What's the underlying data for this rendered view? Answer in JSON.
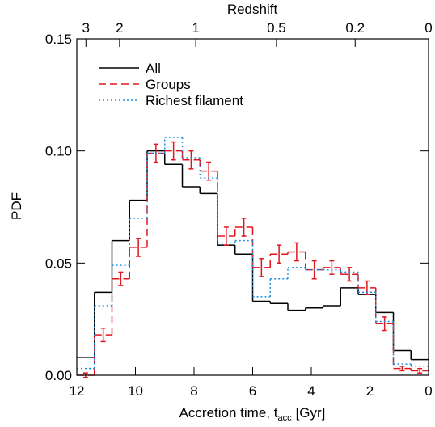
{
  "chart_data": {
    "type": "histogram",
    "xlabel_parts": [
      "Accretion time, t",
      "acc",
      "[Gyr]"
    ],
    "ylabel": "PDF",
    "top_axis": {
      "label": "Redshift",
      "ticks": [
        3,
        2,
        1,
        0.5,
        0.2,
        0
      ]
    },
    "bins": [
      12,
      11.4,
      10.8,
      10.2,
      9.6,
      9.0,
      8.4,
      7.8,
      7.2,
      6.6,
      6.0,
      5.4,
      4.8,
      4.2,
      3.6,
      3.0,
      2.4,
      1.8,
      1.2,
      0.6,
      0
    ],
    "xlim": [
      12,
      0
    ],
    "xticks": [
      12,
      10,
      8,
      6,
      4,
      2,
      0
    ],
    "ylim": [
      0,
      0.15
    ],
    "yticks": [
      {
        "value": 0,
        "label": "0.00"
      },
      {
        "value": 0.05,
        "label": "0.05"
      },
      {
        "value": 0.1,
        "label": "0.10"
      },
      {
        "value": 0.15,
        "label": "0.15"
      }
    ],
    "legend": "upper left",
    "series": [
      {
        "name": "All",
        "color": "#000000",
        "dash": "solid",
        "values": [
          0.008,
          0.037,
          0.06,
          0.078,
          0.1,
          0.094,
          0.084,
          0.081,
          0.058,
          0.054,
          0.033,
          0.032,
          0.029,
          0.03,
          0.031,
          0.039,
          0.036,
          0.028,
          0.011,
          0.007
        ]
      },
      {
        "name": "Groups",
        "color": "#e0161c",
        "dash": "dashed",
        "values": [
          0.0,
          0.018,
          0.043,
          0.057,
          0.099,
          0.1,
          0.096,
          0.091,
          0.062,
          0.066,
          0.048,
          0.054,
          0.055,
          0.047,
          0.048,
          0.045,
          0.039,
          0.023,
          0.003,
          0.002
        ],
        "errors": [
          0.001,
          0.003,
          0.003,
          0.004,
          0.004,
          0.004,
          0.004,
          0.004,
          0.004,
          0.004,
          0.004,
          0.004,
          0.004,
          0.004,
          0.003,
          0.003,
          0.003,
          0.003,
          0.001,
          0.001
        ]
      },
      {
        "name": "Richest filament",
        "color": "#1e8fe0",
        "dash": "dotted",
        "values": [
          0.003,
          0.031,
          0.049,
          0.07,
          0.099,
          0.106,
          0.097,
          0.088,
          0.059,
          0.06,
          0.035,
          0.043,
          0.048,
          0.047,
          0.047,
          0.046,
          0.037,
          0.024,
          0.005,
          0.004
        ]
      }
    ]
  }
}
